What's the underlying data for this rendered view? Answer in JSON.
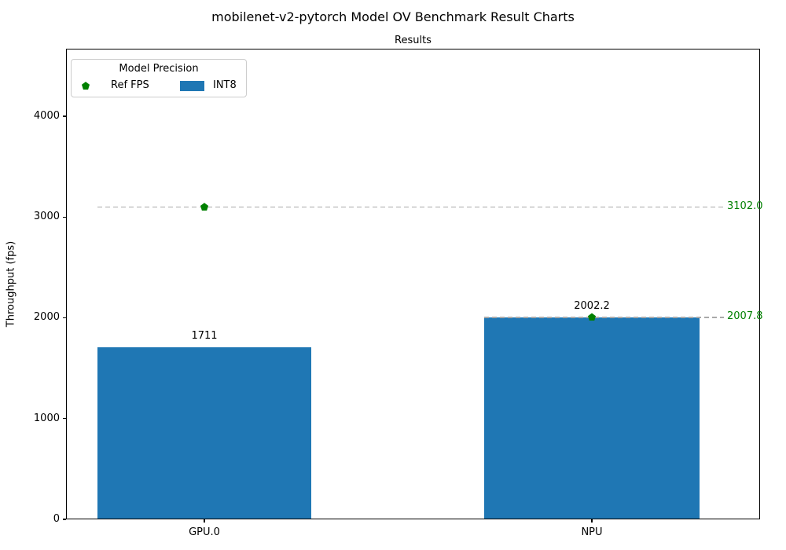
{
  "chart_data": {
    "type": "bar",
    "title": "mobilenet-v2-pytorch Model OV Benchmark Result Charts",
    "axes_title": "Results",
    "ylabel": "Throughput (fps)",
    "xlabel": "",
    "categories": [
      "GPU.0",
      "NPU"
    ],
    "series": [
      {
        "name": "INT8",
        "type": "bar",
        "color": "#1f77b4",
        "values": [
          1711,
          2002.2
        ],
        "value_labels": [
          "1711",
          "2002.2"
        ]
      },
      {
        "name": "Ref FPS",
        "type": "scatter",
        "marker": "pentagon",
        "color": "#008000",
        "values": [
          3102.0,
          2007.8
        ]
      }
    ],
    "ref_lines": {
      "values": [
        3102.0,
        2007.8
      ],
      "labels": [
        "3102.0",
        "2007.8"
      ],
      "line_color": "#a9a9a9",
      "line_style": "dashed",
      "label_color": "#008000"
    },
    "yticks": [
      0,
      1000,
      2000,
      3000,
      4000
    ],
    "ylim": [
      0,
      4670
    ],
    "grid": false,
    "legend": {
      "title": "Model Precision",
      "position": "upper left",
      "items": [
        {
          "label": "Ref FPS",
          "marker": "pentagon",
          "color": "#008000"
        },
        {
          "label": "INT8",
          "marker": "rect",
          "color": "#1f77b4"
        }
      ]
    }
  }
}
